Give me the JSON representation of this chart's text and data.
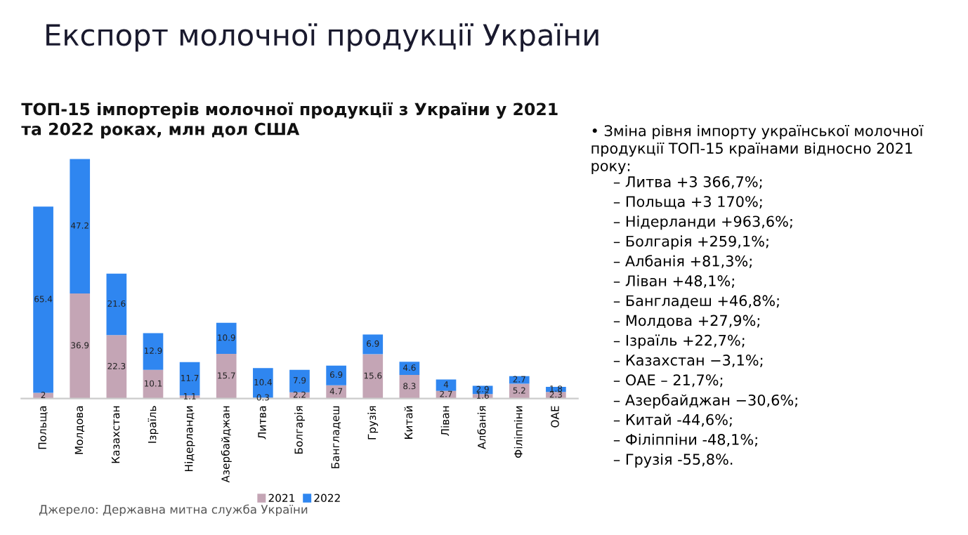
{
  "chart_data": [
    {
      "type": "bar",
      "title": "Експорт молочної продукції України",
      "subtitle": "ТОП-15 імпортерів молочної продукції з України у 2021 та 2022 роках, млн дол США",
      "categories": [
        "Польща",
        "Молдова",
        "Казахстан",
        "Ізраїль",
        "Нідерланди",
        "Азербайджан",
        "Литва",
        "Болгарія",
        "Бангладеш",
        "Грузія",
        "Китай",
        "Ліван",
        "Албанія",
        "Філіппіни",
        "ОАЕ"
      ],
      "series": [
        {
          "name": "2021",
          "color": "#c4a5b5",
          "values": [
            2,
            36.9,
            22.3,
            10.1,
            1.1,
            15.7,
            0.3,
            2.2,
            4.7,
            15.6,
            8.3,
            2.7,
            1.6,
            5.2,
            2.3
          ]
        },
        {
          "name": "2022",
          "color": "#2f86f0",
          "values": [
            65.4,
            47.2,
            21.6,
            12.9,
            11.7,
            10.9,
            10.4,
            7.9,
            6.9,
            6.9,
            4.6,
            4,
            2.9,
            2.7,
            1.8
          ]
        }
      ],
      "stacked": true,
      "data_labels": true,
      "tick_labels": "x",
      "grid": false,
      "legend": "bottom",
      "annotations": [
        "Джерело: Державна митна служба України"
      ]
    },
    {
      "type": "other",
      "title": "• Зміна рівня імпорту української молочної продукції ТОП-15 країнами відносно 2021 року:",
      "annotations": [
        "– Литва +3 366,7%;",
        "– Польща +3 170%;",
        "– Нідерланди +963,6%;",
        "– Болгарія +259,1%;",
        "– Албанія +81,3%;",
        "– Ліван +48,1%;",
        "– Бангладеш +46,8%;",
        "– Молдова +27,9%;",
        "– Ізраїль +22,7%;",
        "– Казахстан −3,1%;",
        "– ОАЕ – 21,7%;",
        "– Азербайджан −30,6%;",
        "– Китай -44,6%;",
        "– Філіппіни -48,1%;",
        "– Грузія -55,8%."
      ]
    }
  ]
}
